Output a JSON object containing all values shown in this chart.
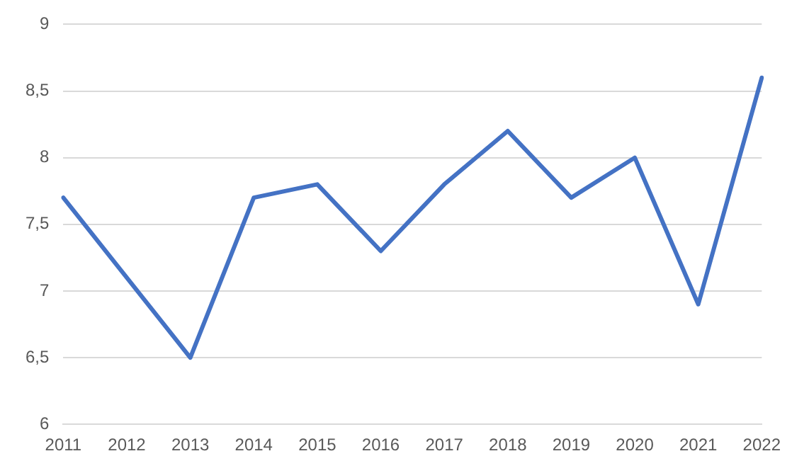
{
  "chart_data": {
    "type": "line",
    "categories": [
      "2011",
      "2012",
      "2013",
      "2014",
      "2015",
      "2016",
      "2017",
      "2018",
      "2019",
      "2020",
      "2021",
      "2022"
    ],
    "series": [
      {
        "color": "#4472c4",
        "values": [
          7.7,
          7.1,
          6.5,
          7.7,
          7.8,
          7.3,
          7.8,
          8.2,
          7.7,
          8.0,
          6.9,
          8.6
        ]
      }
    ],
    "ylim": [
      6,
      9
    ],
    "yticks": [
      6,
      {
        "value": 6.5,
        "label": "6,5"
      },
      7,
      {
        "value": 7.5,
        "label": "7,5"
      },
      8,
      {
        "value": 8.5,
        "label": "8,5"
      },
      9
    ],
    "grid": "y",
    "legend": false,
    "marker": "none",
    "line_style": "solid"
  }
}
